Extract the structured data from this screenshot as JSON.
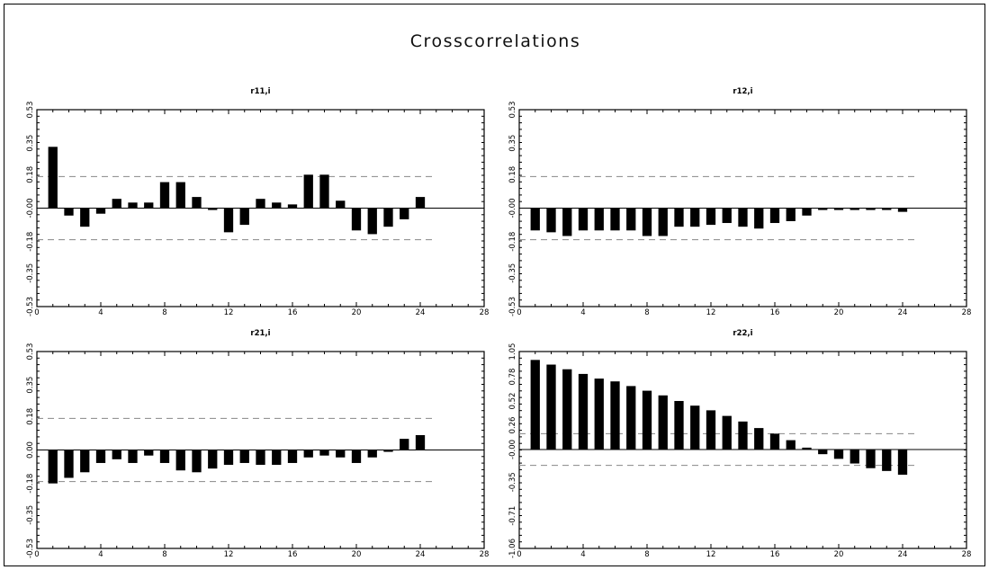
{
  "title": "Crosscorrelations",
  "chart_data": [
    {
      "type": "bar",
      "title": "r11,i",
      "x": [
        1,
        2,
        3,
        4,
        5,
        6,
        7,
        8,
        9,
        10,
        11,
        12,
        13,
        14,
        15,
        16,
        17,
        18,
        19,
        20,
        21,
        22,
        23,
        24
      ],
      "values": [
        0.33,
        -0.04,
        -0.1,
        -0.03,
        0.05,
        0.03,
        0.03,
        0.14,
        0.14,
        0.06,
        -0.01,
        -0.13,
        -0.09,
        0.05,
        0.03,
        0.02,
        0.18,
        0.18,
        0.04,
        -0.12,
        -0.14,
        -0.1,
        -0.06,
        0.06
      ],
      "xlim": [
        0,
        28
      ],
      "ylim": [
        -0.53,
        0.53
      ],
      "xticks": [
        "0",
        "4",
        "8",
        "12",
        "16",
        "20",
        "24",
        "28"
      ],
      "yticks": [
        "-0.53",
        "-0.35",
        "-0.18",
        "-0.00",
        "0.18",
        "0.35",
        "0.53"
      ],
      "ytick_values": [
        -0.53,
        -0.35,
        -0.18,
        0,
        0.18,
        0.35,
        0.53
      ],
      "confidence_band": 0.17,
      "grid": false,
      "legend": false
    },
    {
      "type": "bar",
      "title": "r12,i",
      "x": [
        1,
        2,
        3,
        4,
        5,
        6,
        7,
        8,
        9,
        10,
        11,
        12,
        13,
        14,
        15,
        16,
        17,
        18,
        19,
        20,
        21,
        22,
        23,
        24
      ],
      "values": [
        -0.12,
        -0.13,
        -0.15,
        -0.12,
        -0.12,
        -0.12,
        -0.12,
        -0.15,
        -0.15,
        -0.1,
        -0.1,
        -0.09,
        -0.08,
        -0.1,
        -0.11,
        -0.08,
        -0.07,
        -0.04,
        -0.01,
        -0.01,
        -0.01,
        -0.01,
        -0.01,
        -0.02
      ],
      "xlim": [
        0,
        28
      ],
      "ylim": [
        -0.53,
        0.53
      ],
      "xticks": [
        "0",
        "4",
        "8",
        "12",
        "16",
        "20",
        "24",
        "28"
      ],
      "yticks": [
        "-0.53",
        "-0.35",
        "-0.18",
        "-0.00",
        "0.18",
        "0.35",
        "0.53"
      ],
      "ytick_values": [
        -0.53,
        -0.35,
        -0.18,
        0,
        0.18,
        0.35,
        0.53
      ],
      "confidence_band": 0.17,
      "grid": false,
      "legend": false
    },
    {
      "type": "bar",
      "title": "r21,i",
      "x": [
        1,
        2,
        3,
        4,
        5,
        6,
        7,
        8,
        9,
        10,
        11,
        12,
        13,
        14,
        15,
        16,
        17,
        18,
        19,
        20,
        21,
        22,
        23,
        24
      ],
      "values": [
        -0.18,
        -0.15,
        -0.12,
        -0.07,
        -0.05,
        -0.07,
        -0.03,
        -0.07,
        -0.11,
        -0.12,
        -0.1,
        -0.08,
        -0.07,
        -0.08,
        -0.08,
        -0.07,
        -0.04,
        -0.03,
        -0.04,
        -0.07,
        -0.04,
        -0.01,
        0.06,
        0.08
      ],
      "xlim": [
        0,
        28
      ],
      "ylim": [
        -0.53,
        0.53
      ],
      "xticks": [
        "0",
        "4",
        "8",
        "12",
        "16",
        "20",
        "24",
        "28"
      ],
      "yticks": [
        "-0.53",
        "-0.35",
        "-0.18",
        "0.00",
        "0.18",
        "0.35",
        "0.53"
      ],
      "ytick_values": [
        -0.53,
        -0.35,
        -0.18,
        0,
        0.18,
        0.35,
        0.53
      ],
      "confidence_band": 0.17,
      "grid": false,
      "legend": false
    },
    {
      "type": "bar",
      "title": "r22,i",
      "x": [
        1,
        2,
        3,
        4,
        5,
        6,
        7,
        8,
        9,
        10,
        11,
        12,
        13,
        14,
        15,
        16,
        17,
        18,
        19,
        20,
        21,
        22,
        23,
        24
      ],
      "values": [
        0.96,
        0.91,
        0.86,
        0.81,
        0.76,
        0.73,
        0.68,
        0.63,
        0.58,
        0.52,
        0.47,
        0.42,
        0.36,
        0.3,
        0.23,
        0.17,
        0.1,
        0.02,
        -0.05,
        -0.1,
        -0.15,
        -0.2,
        -0.23,
        -0.27
      ],
      "xlim": [
        0,
        28
      ],
      "ylim": [
        -1.06,
        1.05
      ],
      "xticks": [
        "0",
        "4",
        "8",
        "12",
        "16",
        "20",
        "24",
        "28"
      ],
      "yticks": [
        "-1.06",
        "-0.71",
        "-0.35",
        "-0.00",
        "0.26",
        "0.52",
        "0.78",
        "1.05"
      ],
      "ytick_values": [
        -1.06,
        -0.71,
        -0.35,
        0,
        0.26,
        0.52,
        0.78,
        1.05
      ],
      "confidence_band": 0.17,
      "grid": false,
      "legend": false
    }
  ]
}
